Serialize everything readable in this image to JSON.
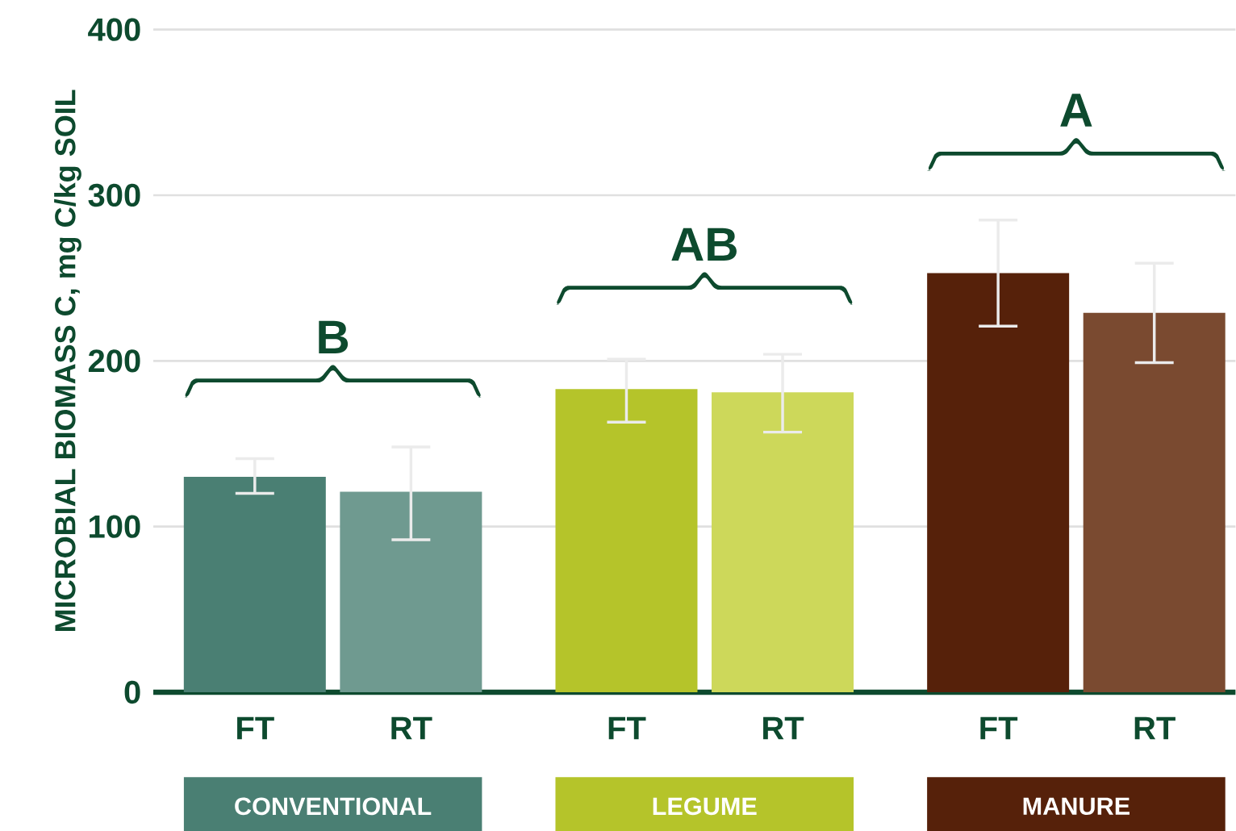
{
  "chart_data": {
    "type": "bar",
    "ylabel": "MICROBIAL BIOMASS C, mg C/kg SOIL",
    "categories": [
      "FT",
      "RT",
      "FT",
      "RT",
      "FT",
      "RT"
    ],
    "values": [
      130,
      121,
      183,
      181,
      253,
      229
    ],
    "errors": [
      [
        120,
        141
      ],
      [
        92,
        148
      ],
      [
        163,
        201
      ],
      [
        157,
        204
      ],
      [
        221,
        285
      ],
      [
        199,
        259
      ]
    ],
    "colors": [
      "#4a7f73",
      "#6f9a90",
      "#b5c42a",
      "#cdd85a",
      "#56210a",
      "#7a4a30"
    ],
    "ylim": [
      0,
      400
    ],
    "yticks": [
      0,
      100,
      200,
      300,
      400
    ],
    "grid": "y",
    "annotations": [
      "B",
      "AB",
      "A",
      "CONVENTIONAL",
      "LEGUME",
      "MANURE"
    ]
  }
}
